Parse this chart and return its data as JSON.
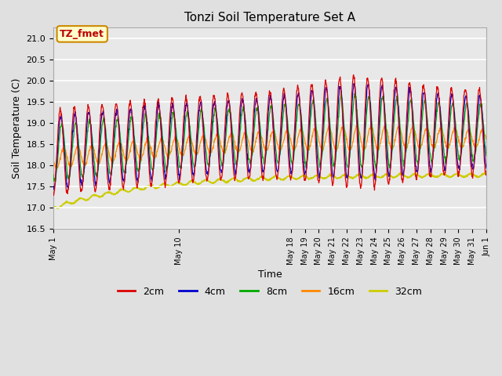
{
  "title": "Tonzi Soil Temperature Set A",
  "xlabel": "Time",
  "ylabel": "Soil Temperature (C)",
  "ylim": [
    16.5,
    21.25
  ],
  "annotation": "TZ_fmet",
  "annotation_color": "#bb0000",
  "annotation_bg": "#ffffcc",
  "annotation_border": "#cc8800",
  "colors": {
    "2cm": "#dd0000",
    "4cm": "#0000cc",
    "8cm": "#00aa00",
    "16cm": "#ff8800",
    "32cm": "#cccc00"
  },
  "legend_labels": [
    "2cm",
    "4cm",
    "8cm",
    "16cm",
    "32cm"
  ],
  "fig_bg": "#e0e0e0",
  "ax_bg": "#e8e8e8",
  "grid_color": "#ffffff",
  "yticks": [
    16.5,
    17.0,
    17.5,
    18.0,
    18.5,
    19.0,
    19.5,
    20.0,
    20.5,
    21.0
  ],
  "xtick_days": [
    1,
    10,
    18,
    19,
    20,
    21,
    22,
    23,
    24,
    25,
    26,
    27,
    28,
    29,
    30,
    31,
    32
  ],
  "xtick_labels": [
    "May 1",
    "May 10",
    "May 18",
    "May 19",
    "May 20",
    "May 21",
    "May 22",
    "May 23",
    "May 24",
    "May 25",
    "May 26",
    "May 27",
    "May 28",
    "May 29",
    "May 30",
    "May 31",
    "Jun 1"
  ]
}
